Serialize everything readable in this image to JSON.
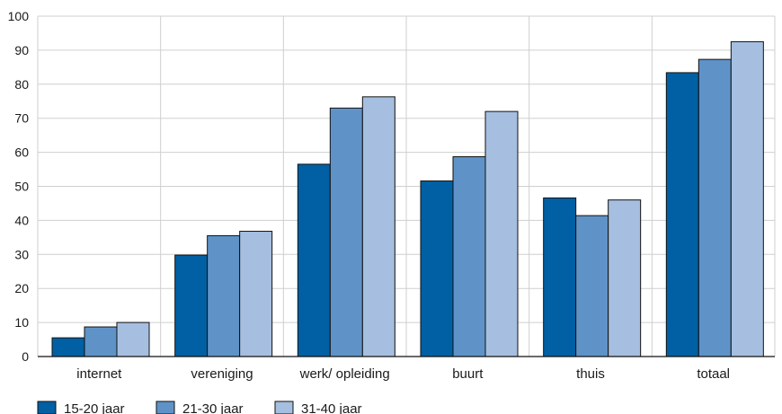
{
  "chart_data": {
    "type": "bar",
    "title": "",
    "xlabel": "",
    "ylabel": "",
    "ylim": [
      0,
      100
    ],
    "yticks": [
      0,
      10,
      20,
      30,
      40,
      50,
      60,
      70,
      80,
      90,
      100
    ],
    "grid": "vertical and horizontal gridlines",
    "legend_position": "bottom-left",
    "categories": [
      "internet",
      "vereniging",
      "werk/ opleiding",
      "buurt",
      "thuis",
      "totaal"
    ],
    "series": [
      {
        "name": "15-20 jaar",
        "color": "#0060a3",
        "values": [
          5.5,
          29.8,
          56.5,
          51.6,
          46.6,
          83.4
        ]
      },
      {
        "name": "21-30 jaar",
        "color": "#5f93c8",
        "values": [
          8.7,
          35.5,
          73.0,
          58.7,
          41.4,
          87.3
        ]
      },
      {
        "name": "31-40 jaar",
        "color": "#a6bfe0",
        "values": [
          10.0,
          36.8,
          76.3,
          72.0,
          46.0,
          92.5
        ]
      }
    ]
  }
}
